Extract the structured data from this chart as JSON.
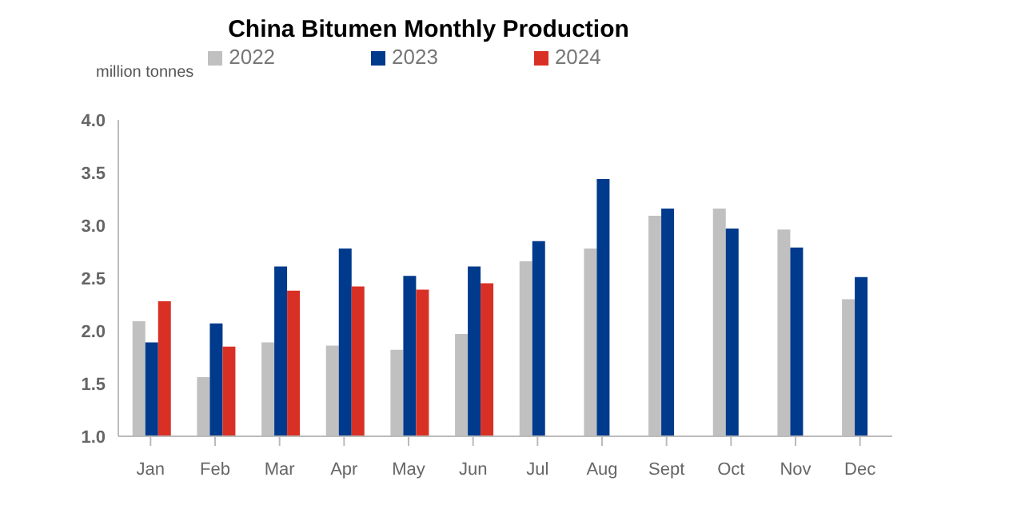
{
  "chart_data": {
    "type": "bar",
    "title": "China Bitumen Monthly Production",
    "ylabel": "million tonnes",
    "categories": [
      "Jan",
      "Feb",
      "Mar",
      "Apr",
      "May",
      "Jun",
      "Jul",
      "Aug",
      "Sept",
      "Oct",
      "Nov",
      "Dec"
    ],
    "series": [
      {
        "name": "2022",
        "color": "#c0c0c0",
        "values": [
          2.09,
          1.56,
          1.89,
          1.86,
          1.82,
          1.97,
          2.66,
          2.78,
          3.09,
          3.16,
          2.96,
          2.3
        ]
      },
      {
        "name": "2023",
        "color": "#003a8c",
        "values": [
          1.89,
          2.07,
          2.61,
          2.78,
          2.52,
          2.61,
          2.85,
          3.44,
          3.16,
          2.97,
          2.79,
          2.51
        ]
      },
      {
        "name": "2024",
        "color": "#d93025",
        "values": [
          2.28,
          1.85,
          2.38,
          2.42,
          2.39,
          2.45,
          null,
          null,
          null,
          null,
          null,
          null
        ]
      }
    ],
    "ylim": [
      1.0,
      4.0
    ],
    "yticks": [
      {
        "value": 1,
        "label": "1.0"
      },
      1.5,
      {
        "value": 2,
        "label": "2.0"
      },
      2.5,
      {
        "value": 3,
        "label": "3.0"
      },
      3.5,
      {
        "value": 4,
        "label": "4.0"
      }
    ],
    "grid": false,
    "legend": "top"
  }
}
